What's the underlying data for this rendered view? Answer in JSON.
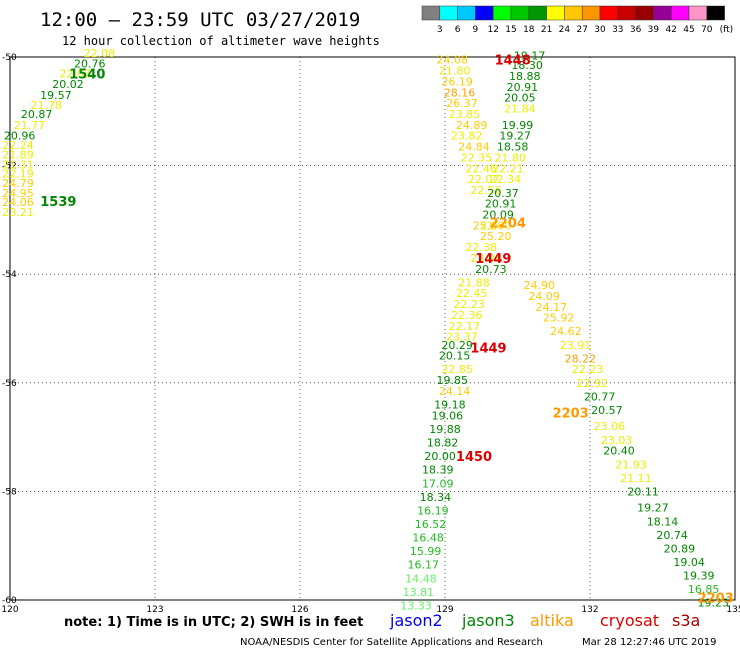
{
  "header": {
    "title": "12:00 – 23:59 UTC 03/27/2019",
    "subtitle": "12 hour collection of altimeter wave heights"
  },
  "colorbar": {
    "ticks": [
      "3",
      "6",
      "9",
      "12",
      "15",
      "18",
      "21",
      "24",
      "27",
      "30",
      "33",
      "36",
      "39",
      "42",
      "45",
      "70"
    ],
    "unit": "(ft)",
    "colors": [
      "#808080",
      "#00ffff",
      "#00c8ff",
      "#0000ff",
      "#00ff00",
      "#00c800",
      "#009600",
      "#ffff00",
      "#ffc800",
      "#ff9600",
      "#ff0000",
      "#c80000",
      "#960000",
      "#960096",
      "#ff00ff",
      "#ff96c8",
      "#000000"
    ]
  },
  "footer": {
    "note": "note:  1) Time is in UTC;  2) SWH is in feet",
    "credit": "NOAA/NESDIS Center for Satellite Applications and Research",
    "timestamp": "Mar 28 12:27:46 UTC 2019"
  },
  "legend": [
    {
      "name": "jason2",
      "color": "#0000ee"
    },
    {
      "name": "jason3",
      "color": "#008800"
    },
    {
      "name": "altika",
      "color": "#ff9900"
    },
    {
      "name": "cryosat",
      "color": "#dd0000"
    },
    {
      "name": "s3a",
      "color": "#aa0000"
    }
  ],
  "chart_data": {
    "type": "scatter",
    "x_ticks": [
      "120",
      "123",
      "126",
      "129",
      "132",
      "135"
    ],
    "y_ticks": [
      "-50",
      "-52",
      "-54",
      "-56",
      "-58",
      "-60"
    ],
    "xlim": [
      120,
      135
    ],
    "ylim": [
      -60,
      -50
    ],
    "grid": true,
    "value_colors": {
      "15": "#66ee66",
      "18": "#22bb22",
      "21": "#008800",
      "24": "#eeee00",
      "27": "#ffcc00",
      "30": "#ffa000"
    },
    "time_labels": [
      {
        "text": "1540",
        "lon": 121.6,
        "lat": -50.3,
        "color": "#008800"
      },
      {
        "text": "1539",
        "lon": 121.0,
        "lat": -52.65,
        "color": "#008800"
      },
      {
        "text": "1448",
        "lon": 130.4,
        "lat": -50.05,
        "color": "#dd0000"
      },
      {
        "text": "2204",
        "lon": 130.3,
        "lat": -53.05,
        "color": "#ff9900"
      },
      {
        "text": "1449",
        "lon": 130.0,
        "lat": -53.7,
        "color": "#dd0000"
      },
      {
        "text": "1449",
        "lon": 129.9,
        "lat": -55.35,
        "color": "#dd0000"
      },
      {
        "text": "2203",
        "lon": 131.6,
        "lat": -56.55,
        "color": "#ff9900"
      },
      {
        "text": "1450",
        "lon": 129.6,
        "lat": -57.35,
        "color": "#dd0000"
      },
      {
        "text": "2203",
        "lon": 134.6,
        "lat": -59.95,
        "color": "#ff9900"
      }
    ],
    "tracks": [
      {
        "name": "jason3-1539",
        "values": [
          {
            "lon": 121.85,
            "lat": -49.93,
            "v": "22.08"
          },
          {
            "lon": 121.65,
            "lat": -50.12,
            "v": "20.76"
          },
          {
            "lon": 121.35,
            "lat": -50.3,
            "v": "22.07"
          },
          {
            "lon": 121.2,
            "lat": -50.5,
            "v": "20.02"
          },
          {
            "lon": 120.95,
            "lat": -50.7,
            "v": "19.57"
          },
          {
            "lon": 120.75,
            "lat": -50.88,
            "v": "21.78"
          },
          {
            "lon": 120.55,
            "lat": -51.05,
            "v": "20.87"
          },
          {
            "lon": 120.4,
            "lat": -51.25,
            "v": "21.77"
          },
          {
            "lon": 120.2,
            "lat": -51.45,
            "v": "20.96"
          },
          {
            "lon": 119.95,
            "lat": -51.62,
            "v": "22.24"
          },
          {
            "lon": 119.8,
            "lat": -51.8,
            "v": "21.89"
          },
          {
            "lon": 119.6,
            "lat": -51.98,
            "v": "21.31"
          },
          {
            "lon": 119.45,
            "lat": -52.15,
            "v": "22.19"
          },
          {
            "lon": 119.25,
            "lat": -52.32,
            "v": "24.79"
          },
          {
            "lon": 119.1,
            "lat": -52.5,
            "v": "24.95"
          },
          {
            "lon": 118.95,
            "lat": -52.67,
            "v": "24.06"
          },
          {
            "lon": 118.75,
            "lat": -52.85,
            "v": "23.21"
          }
        ]
      },
      {
        "name": "jason3-1448",
        "values": [
          {
            "lon": 129.15,
            "lat": -50.05,
            "v": "24.08"
          },
          {
            "lon": 129.2,
            "lat": -50.25,
            "v": "21.80"
          },
          {
            "lon": 129.25,
            "lat": -50.45,
            "v": "26.19"
          },
          {
            "lon": 129.3,
            "lat": -50.65,
            "v": "28.16"
          },
          {
            "lon": 129.35,
            "lat": -50.85,
            "v": "26.37"
          },
          {
            "lon": 129.4,
            "lat": -51.05,
            "v": "23.85"
          },
          {
            "lon": 129.55,
            "lat": -51.25,
            "v": "24.89"
          },
          {
            "lon": 129.45,
            "lat": -51.45,
            "v": "23.82"
          },
          {
            "lon": 129.6,
            "lat": -51.65,
            "v": "24.84"
          },
          {
            "lon": 129.65,
            "lat": -51.85,
            "v": "22.35"
          },
          {
            "lon": 129.75,
            "lat": -52.05,
            "v": "22.46"
          },
          {
            "lon": 129.8,
            "lat": -52.25,
            "v": "22.07"
          },
          {
            "lon": 129.85,
            "lat": -52.45,
            "v": "22.56"
          },
          {
            "lon": 129.9,
            "lat": -53.1,
            "v": "25.06"
          },
          {
            "lon": 130.05,
            "lat": -53.3,
            "v": "25.20"
          },
          {
            "lon": 129.75,
            "lat": -53.5,
            "v": "22.38"
          },
          {
            "lon": 129.85,
            "lat": -53.7,
            "v": "23.08"
          },
          {
            "lon": 129.6,
            "lat": -54.15,
            "v": "21.88"
          },
          {
            "lon": 129.55,
            "lat": -54.35,
            "v": "22.45"
          },
          {
            "lon": 129.5,
            "lat": -54.55,
            "v": "22.23"
          },
          {
            "lon": 129.45,
            "lat": -54.75,
            "v": "22.36"
          },
          {
            "lon": 129.4,
            "lat": -54.95,
            "v": "22.17"
          },
          {
            "lon": 129.35,
            "lat": -55.15,
            "v": "23.37"
          },
          {
            "lon": 129.25,
            "lat": -55.75,
            "v": "22.85"
          },
          {
            "lon": 129.2,
            "lat": -56.15,
            "v": "24.14"
          }
        ]
      },
      {
        "name": "jason3-1448g",
        "values": [
          {
            "lon": 130.75,
            "lat": -49.97,
            "v": "19.17"
          },
          {
            "lon": 130.7,
            "lat": -50.15,
            "v": "18.30"
          },
          {
            "lon": 130.65,
            "lat": -50.35,
            "v": "18.88"
          },
          {
            "lon": 130.6,
            "lat": -50.55,
            "v": "20.91"
          },
          {
            "lon": 130.55,
            "lat": -50.75,
            "v": "20.05"
          },
          {
            "lon": 130.55,
            "lat": -50.95,
            "v": "21.84"
          },
          {
            "lon": 130.5,
            "lat": -51.25,
            "v": "19.99"
          },
          {
            "lon": 130.45,
            "lat": -51.45,
            "v": "19.27"
          },
          {
            "lon": 130.4,
            "lat": -51.65,
            "v": "18.58"
          },
          {
            "lon": 130.35,
            "lat": -51.85,
            "v": "21.80"
          },
          {
            "lon": 130.3,
            "lat": -52.05,
            "v": "22.21"
          },
          {
            "lon": 130.25,
            "lat": -52.25,
            "v": "22.34"
          },
          {
            "lon": 130.2,
            "lat": -52.5,
            "v": "20.37"
          },
          {
            "lon": 130.15,
            "lat": -52.7,
            "v": "20.91"
          },
          {
            "lon": 130.1,
            "lat": -52.9,
            "v": "20.09"
          },
          {
            "lon": 130.05,
            "lat": -53.1,
            "v": "21.00"
          },
          {
            "lon": 129.95,
            "lat": -53.9,
            "v": "20.73"
          },
          {
            "lon": 129.25,
            "lat": -55.3,
            "v": "20.29"
          },
          {
            "lon": 129.2,
            "lat": -55.5,
            "v": "20.15"
          },
          {
            "lon": 129.15,
            "lat": -55.95,
            "v": "19.85"
          },
          {
            "lon": 129.1,
            "lat": -56.4,
            "v": "19.18"
          },
          {
            "lon": 129.05,
            "lat": -56.6,
            "v": "19.06"
          },
          {
            "lon": 129.0,
            "lat": -56.85,
            "v": "19.88"
          },
          {
            "lon": 128.95,
            "lat": -57.1,
            "v": "18.82"
          },
          {
            "lon": 128.9,
            "lat": -57.35,
            "v": "20.00"
          },
          {
            "lon": 128.85,
            "lat": -57.6,
            "v": "18.39"
          },
          {
            "lon": 128.85,
            "lat": -57.85,
            "v": "17.09"
          },
          {
            "lon": 128.8,
            "lat": -58.1,
            "v": "18.34"
          },
          {
            "lon": 128.75,
            "lat": -58.35,
            "v": "16.19"
          },
          {
            "lon": 128.7,
            "lat": -58.6,
            "v": "16.52"
          },
          {
            "lon": 128.65,
            "lat": -58.85,
            "v": "16.48"
          },
          {
            "lon": 128.6,
            "lat": -59.1,
            "v": "15.99"
          },
          {
            "lon": 128.55,
            "lat": -59.35,
            "v": "16.17"
          },
          {
            "lon": 128.5,
            "lat": -59.6,
            "v": "14.48"
          },
          {
            "lon": 128.45,
            "lat": -59.85,
            "v": "13.81"
          },
          {
            "lon": 128.4,
            "lat": -60.1,
            "v": "13.33"
          }
        ]
      },
      {
        "name": "altika-2204",
        "values": [
          {
            "lon": 130.95,
            "lat": -54.2,
            "v": "24.90"
          },
          {
            "lon": 131.05,
            "lat": -54.4,
            "v": "24.09"
          },
          {
            "lon": 131.2,
            "lat": -54.6,
            "v": "24.17"
          },
          {
            "lon": 131.35,
            "lat": -54.8,
            "v": "25.92"
          },
          {
            "lon": 131.5,
            "lat": -55.05,
            "v": "24.62"
          },
          {
            "lon": 131.7,
            "lat": -55.3,
            "v": "23.91"
          },
          {
            "lon": 131.8,
            "lat": -55.55,
            "v": "28.22"
          },
          {
            "lon": 131.95,
            "lat": -55.75,
            "v": "22.23"
          },
          {
            "lon": 132.05,
            "lat": -56.0,
            "v": "22.92"
          },
          {
            "lon": 132.4,
            "lat": -56.8,
            "v": "23.06"
          },
          {
            "lon": 132.55,
            "lat": -57.05,
            "v": "23.03"
          },
          {
            "lon": 132.85,
            "lat": -57.5,
            "v": "21.93"
          },
          {
            "lon": 132.95,
            "lat": -57.75,
            "v": "21.11"
          }
        ]
      },
      {
        "name": "jason3-2203g",
        "values": [
          {
            "lon": 132.2,
            "lat": -56.25,
            "v": "20.77"
          },
          {
            "lon": 132.35,
            "lat": -56.5,
            "v": "20.57"
          },
          {
            "lon": 132.6,
            "lat": -57.25,
            "v": "20.40"
          },
          {
            "lon": 133.1,
            "lat": -58.0,
            "v": "20.11"
          },
          {
            "lon": 133.3,
            "lat": -58.3,
            "v": "19.27"
          },
          {
            "lon": 133.5,
            "lat": -58.55,
            "v": "18.14"
          },
          {
            "lon": 133.7,
            "lat": -58.8,
            "v": "20.74"
          },
          {
            "lon": 133.85,
            "lat": -59.05,
            "v": "20.89"
          },
          {
            "lon": 134.05,
            "lat": -59.3,
            "v": "19.04"
          },
          {
            "lon": 134.25,
            "lat": -59.55,
            "v": "19.39"
          },
          {
            "lon": 134.35,
            "lat": -59.8,
            "v": "16.85"
          },
          {
            "lon": 134.55,
            "lat": -60.05,
            "v": "19.23"
          }
        ]
      }
    ]
  }
}
